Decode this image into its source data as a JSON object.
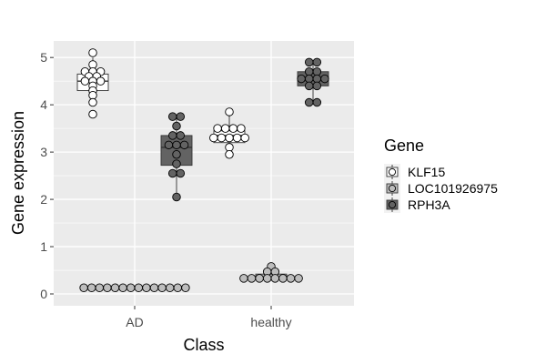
{
  "chart_data": {
    "type": "boxplot",
    "title": "",
    "xlabel": "Class",
    "ylabel": "Gene expression",
    "categories": [
      "AD",
      "healthy"
    ],
    "yticks": [
      0,
      1,
      2,
      3,
      4,
      5
    ],
    "ylim": [
      -0.25,
      5.35
    ],
    "grid": true,
    "legend": {
      "title": "Gene",
      "placement": "right"
    },
    "series": [
      {
        "name": "KLF15",
        "color": "#ffffff",
        "groups": [
          {
            "category": "AD",
            "box": {
              "q1": 4.3,
              "median": 4.5,
              "q3": 4.65,
              "whisker_low": 4.0,
              "whisker_high": 5.0
            },
            "points": [
              5.1,
              4.85,
              4.7,
              4.7,
              4.7,
              4.6,
              4.55,
              4.5,
              4.5,
              4.5,
              4.4,
              4.3,
              4.2,
              4.05,
              3.8
            ]
          },
          {
            "category": "healthy",
            "box": {
              "q1": 3.2,
              "median": 3.35,
              "q3": 3.45,
              "whisker_low": 2.95,
              "whisker_high": 3.85
            },
            "points": [
              3.85,
              3.5,
              3.5,
              3.5,
              3.5,
              3.3,
              3.3,
              3.3,
              3.3,
              3.3,
              3.1,
              2.95
            ]
          }
        ]
      },
      {
        "name": "LOC101926975",
        "color": "#bdbdbd",
        "groups": [
          {
            "category": "AD",
            "box": {
              "q1": 0.11,
              "median": 0.13,
              "q3": 0.15,
              "whisker_low": 0.1,
              "whisker_high": 0.16
            },
            "points": [
              0.13,
              0.13,
              0.13,
              0.13,
              0.13,
              0.13,
              0.13,
              0.13,
              0.13,
              0.13,
              0.13,
              0.13,
              0.13,
              0.13
            ]
          },
          {
            "category": "healthy",
            "box": {
              "q1": 0.3,
              "median": 0.33,
              "q3": 0.42,
              "whisker_low": 0.28,
              "whisker_high": 0.55
            },
            "points": [
              0.58,
              0.47,
              0.47,
              0.33,
              0.33,
              0.33,
              0.33,
              0.33,
              0.33,
              0.33,
              0.33
            ]
          }
        ]
      },
      {
        "name": "RPH3A",
        "color": "#636363",
        "groups": [
          {
            "category": "AD",
            "box": {
              "q1": 2.72,
              "median": 3.1,
              "q3": 3.35,
              "whisker_low": 2.05,
              "whisker_high": 3.75
            },
            "points": [
              3.75,
              3.75,
              3.55,
              3.35,
              3.35,
              3.15,
              3.15,
              3.15,
              2.95,
              2.75,
              2.55,
              2.55,
              2.05
            ]
          },
          {
            "category": "healthy",
            "box": {
              "q1": 4.4,
              "median": 4.55,
              "q3": 4.7,
              "whisker_low": 4.05,
              "whisker_high": 4.9
            },
            "points": [
              4.9,
              4.9,
              4.7,
              4.7,
              4.55,
              4.55,
              4.55,
              4.55,
              4.4,
              4.4,
              4.05,
              4.05
            ]
          }
        ]
      }
    ]
  }
}
